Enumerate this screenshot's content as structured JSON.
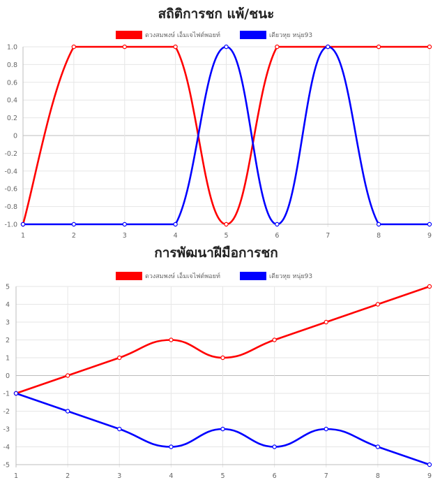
{
  "chart_data": [
    {
      "type": "line",
      "title": "สถิติการชก แพ้/ชนะ",
      "x": [
        1,
        2,
        3,
        4,
        5,
        6,
        7,
        8,
        9
      ],
      "ylim": [
        -1.0,
        1.0
      ],
      "yticks": [
        "1.0",
        "0.8",
        "0.6",
        "0.4",
        "0.2",
        "0",
        "-0.2",
        "-0.4",
        "-0.6",
        "-0.8",
        "-1.0"
      ],
      "ytick_values": [
        1.0,
        0.8,
        0.6,
        0.4,
        0.2,
        0,
        -0.2,
        -0.4,
        -0.6,
        -0.8,
        -1.0
      ],
      "xticks": [
        "1",
        "2",
        "3",
        "4",
        "5",
        "6",
        "7",
        "8",
        "9"
      ],
      "grid": true,
      "legend_position": "top",
      "series": [
        {
          "name": "ดวงสมพงษ์ เอ็มเจไฟต์พอยท์",
          "color": "#ff0000",
          "values": [
            -1,
            1,
            1,
            1,
            -1,
            1,
            1,
            1,
            1
          ]
        },
        {
          "name": "เดียวหุย หนุ่ย93",
          "color": "#0000ff",
          "values": [
            -1,
            -1,
            -1,
            -1,
            1,
            -1,
            1,
            -1,
            -1
          ]
        }
      ]
    },
    {
      "type": "line",
      "title": "การพัฒนาฝีมือการชก",
      "x": [
        1,
        2,
        3,
        4,
        5,
        6,
        7,
        8,
        9
      ],
      "ylim": [
        -5,
        5
      ],
      "yticks": [
        "5",
        "4",
        "3",
        "2",
        "1",
        "0",
        "-1",
        "-2",
        "-3",
        "-4",
        "-5"
      ],
      "ytick_values": [
        5,
        4,
        3,
        2,
        1,
        0,
        -1,
        -2,
        -3,
        -4,
        -5
      ],
      "xticks": [
        "1",
        "2",
        "3",
        "4",
        "5",
        "6",
        "7",
        "8",
        "9"
      ],
      "grid": true,
      "legend_position": "top",
      "series": [
        {
          "name": "ดวงสมพงษ์ เอ็มเจไฟต์พอยท์",
          "color": "#ff0000",
          "values": [
            -1,
            0,
            1,
            2,
            1,
            2,
            3,
            4,
            5
          ]
        },
        {
          "name": "เดียวหุย หนุ่ย93",
          "color": "#0000ff",
          "values": [
            -1,
            -2,
            -3,
            -4,
            -3,
            -4,
            -3,
            -4,
            -5
          ]
        }
      ]
    }
  ]
}
